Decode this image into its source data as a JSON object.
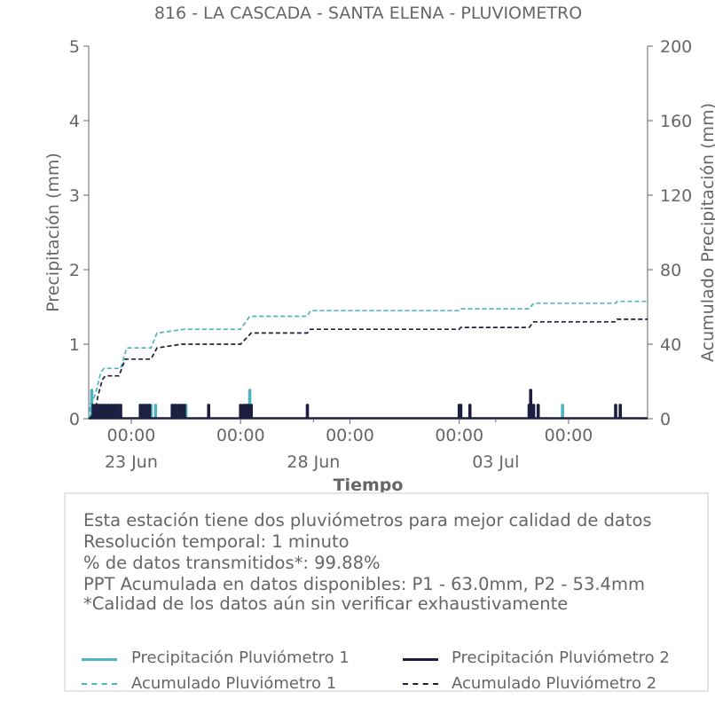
{
  "colors": {
    "p1": "#4fb3c1",
    "p2": "#1c1e3f",
    "axis": "#666666"
  },
  "chart_data": {
    "type": "line",
    "title": "816 - LA CASCADA - SANTA ELENA - PLUVIOMETRO",
    "xlabel": "Tiempo",
    "ylabel": "Precipitación (mm)",
    "y2label": "Acumulado Precipitación (mm)",
    "xlim": [
      "2023-06-21T20:00",
      "2023-07-07T04:00"
    ],
    "ylim": [
      0,
      5
    ],
    "y2lim": [
      0,
      200
    ],
    "yticks": [
      "0",
      "1",
      "2",
      "3",
      "4",
      "5"
    ],
    "y2ticks": [
      "0",
      "40",
      "80",
      "120",
      "160",
      "200"
    ],
    "xticks": [
      {
        "t": "2023-06-23T00:00",
        "label": "00:00"
      },
      {
        "t": "2023-06-26T00:00",
        "label": "00:00"
      },
      {
        "t": "2023-06-29T00:00",
        "label": "00:00"
      },
      {
        "t": "2023-07-02T00:00",
        "label": "00:00"
      },
      {
        "t": "2023-07-05T00:00",
        "label": "00:00"
      }
    ],
    "xdates": [
      {
        "t": "2023-06-23T00:00",
        "label": "23 Jun"
      },
      {
        "t": "2023-06-28T00:00",
        "label": "28 Jun"
      },
      {
        "t": "2023-07-03T00:00",
        "label": "03 Jul"
      }
    ],
    "series": [
      {
        "name": "Precipitación Pluviómetro 1",
        "style": "bar",
        "axis": "left",
        "points": [
          {
            "x": "2023-06-21T22:00",
            "y": 0.4
          },
          {
            "x": "2023-06-22T00:00",
            "y": 0.2
          },
          {
            "x": "2023-06-22T02:00",
            "y": 0.2
          },
          {
            "x": "2023-06-22T04:00",
            "y": 0.2
          },
          {
            "x": "2023-06-22T06:00",
            "y": 0.2
          },
          {
            "x": "2023-06-22T08:00",
            "y": 0.2
          },
          {
            "x": "2023-06-22T10:00",
            "y": 0.2
          },
          {
            "x": "2023-06-22T12:00",
            "y": 0.2
          },
          {
            "x": "2023-06-22T14:00",
            "y": 0.2
          },
          {
            "x": "2023-06-22T16:00",
            "y": 0.2
          },
          {
            "x": "2023-06-23T07:00",
            "y": 0.2
          },
          {
            "x": "2023-06-23T09:00",
            "y": 0.2
          },
          {
            "x": "2023-06-23T11:00",
            "y": 0.2
          },
          {
            "x": "2023-06-23T13:00",
            "y": 0.2
          },
          {
            "x": "2023-06-23T16:00",
            "y": 0.2
          },
          {
            "x": "2023-06-24T04:00",
            "y": 0.2
          },
          {
            "x": "2023-06-24T06:00",
            "y": 0.2
          },
          {
            "x": "2023-06-24T08:00",
            "y": 0.2
          },
          {
            "x": "2023-06-24T10:00",
            "y": 0.2
          },
          {
            "x": "2023-06-24T12:00",
            "y": 0.2
          },
          {
            "x": "2023-06-26T03:00",
            "y": 0.2
          },
          {
            "x": "2023-06-26T06:00",
            "y": 0.4
          },
          {
            "x": "2023-07-04T20:00",
            "y": 0.2
          }
        ]
      },
      {
        "name": "Precipitación Pluviómetro 2",
        "style": "bar",
        "axis": "left",
        "points": [
          {
            "x": "2023-06-21T23:00",
            "y": 0.2
          },
          {
            "x": "2023-06-22T01:00",
            "y": 0.2
          },
          {
            "x": "2023-06-22T03:00",
            "y": 0.2
          },
          {
            "x": "2023-06-22T05:00",
            "y": 0.2
          },
          {
            "x": "2023-06-22T07:00",
            "y": 0.2
          },
          {
            "x": "2023-06-22T09:00",
            "y": 0.2
          },
          {
            "x": "2023-06-22T11:00",
            "y": 0.2
          },
          {
            "x": "2023-06-22T13:00",
            "y": 0.2
          },
          {
            "x": "2023-06-22T15:00",
            "y": 0.2
          },
          {
            "x": "2023-06-22T17:00",
            "y": 0.2
          },
          {
            "x": "2023-06-23T06:00",
            "y": 0.2
          },
          {
            "x": "2023-06-23T08:00",
            "y": 0.2
          },
          {
            "x": "2023-06-23T10:00",
            "y": 0.2
          },
          {
            "x": "2023-06-23T12:00",
            "y": 0.2
          },
          {
            "x": "2023-06-24T03:00",
            "y": 0.2
          },
          {
            "x": "2023-06-24T05:00",
            "y": 0.2
          },
          {
            "x": "2023-06-24T07:00",
            "y": 0.2
          },
          {
            "x": "2023-06-24T09:00",
            "y": 0.2
          },
          {
            "x": "2023-06-24T11:00",
            "y": 0.2
          },
          {
            "x": "2023-06-25T03:00",
            "y": 0.2
          },
          {
            "x": "2023-06-26T00:00",
            "y": 0.2
          },
          {
            "x": "2023-06-26T02:00",
            "y": 0.2
          },
          {
            "x": "2023-06-26T04:00",
            "y": 0.2
          },
          {
            "x": "2023-06-26T05:00",
            "y": 0.2
          },
          {
            "x": "2023-06-26T07:00",
            "y": 0.2
          },
          {
            "x": "2023-06-27T20:00",
            "y": 0.2
          },
          {
            "x": "2023-07-02T00:00",
            "y": 0.2
          },
          {
            "x": "2023-07-02T01:00",
            "y": 0.2
          },
          {
            "x": "2023-07-02T07:00",
            "y": 0.2
          },
          {
            "x": "2023-07-03T22:00",
            "y": 0.2
          },
          {
            "x": "2023-07-03T23:00",
            "y": 0.4
          },
          {
            "x": "2023-07-04T01:00",
            "y": 0.2
          },
          {
            "x": "2023-07-04T04:00",
            "y": 0.2
          },
          {
            "x": "2023-07-06T07:00",
            "y": 0.2
          },
          {
            "x": "2023-07-06T10:00",
            "y": 0.2
          }
        ]
      },
      {
        "name": "Acumulado Pluviómetro 1",
        "style": "dashed",
        "axis": "right",
        "points": [
          {
            "x": "2023-06-21T20:00",
            "y": 0
          },
          {
            "x": "2023-06-21T21:00",
            "y": 8
          },
          {
            "x": "2023-06-21T23:00",
            "y": 10
          },
          {
            "x": "2023-06-22T01:00",
            "y": 15
          },
          {
            "x": "2023-06-22T04:00",
            "y": 25
          },
          {
            "x": "2023-06-22T06:00",
            "y": 27
          },
          {
            "x": "2023-06-22T17:00",
            "y": 27
          },
          {
            "x": "2023-06-22T21:00",
            "y": 38
          },
          {
            "x": "2023-06-23T13:00",
            "y": 38
          },
          {
            "x": "2023-06-23T17:00",
            "y": 46
          },
          {
            "x": "2023-06-24T11:00",
            "y": 48
          },
          {
            "x": "2023-06-26T00:00",
            "y": 48
          },
          {
            "x": "2023-06-26T06:00",
            "y": 55
          },
          {
            "x": "2023-06-27T20:00",
            "y": 55
          },
          {
            "x": "2023-06-27T22:00",
            "y": 58
          },
          {
            "x": "2023-07-02T00:00",
            "y": 58
          },
          {
            "x": "2023-07-02T01:00",
            "y": 59
          },
          {
            "x": "2023-07-03T22:00",
            "y": 59
          },
          {
            "x": "2023-07-04T01:00",
            "y": 62
          },
          {
            "x": "2023-07-06T07:00",
            "y": 62
          },
          {
            "x": "2023-07-06T08:00",
            "y": 63
          },
          {
            "x": "2023-07-07T04:00",
            "y": 63
          }
        ]
      },
      {
        "name": "Acumulado Pluviómetro 2",
        "style": "dashed",
        "axis": "right",
        "points": [
          {
            "x": "2023-06-21T20:00",
            "y": 0
          },
          {
            "x": "2023-06-22T00:00",
            "y": 3
          },
          {
            "x": "2023-06-22T02:00",
            "y": 12
          },
          {
            "x": "2023-06-22T05:00",
            "y": 21
          },
          {
            "x": "2023-06-22T07:00",
            "y": 23
          },
          {
            "x": "2023-06-22T16:00",
            "y": 23
          },
          {
            "x": "2023-06-22T20:00",
            "y": 32
          },
          {
            "x": "2023-06-23T13:00",
            "y": 32
          },
          {
            "x": "2023-06-23T17:00",
            "y": 38
          },
          {
            "x": "2023-06-24T09:00",
            "y": 40
          },
          {
            "x": "2023-06-26T00:00",
            "y": 40
          },
          {
            "x": "2023-06-26T07:00",
            "y": 46
          },
          {
            "x": "2023-06-27T20:00",
            "y": 46
          },
          {
            "x": "2023-06-27T22:00",
            "y": 48
          },
          {
            "x": "2023-07-02T00:00",
            "y": 48
          },
          {
            "x": "2023-07-02T01:00",
            "y": 49
          },
          {
            "x": "2023-07-03T22:00",
            "y": 49
          },
          {
            "x": "2023-07-04T01:00",
            "y": 52
          },
          {
            "x": "2023-07-06T07:00",
            "y": 52
          },
          {
            "x": "2023-07-06T08:00",
            "y": 53.4
          },
          {
            "x": "2023-07-07T04:00",
            "y": 53.4
          }
        ]
      }
    ]
  },
  "info": {
    "line1": "Esta estación tiene dos pluviómetros para mejor calidad de datos",
    "line2": "Resolución temporal: 1 minuto",
    "line3": "% de datos transmitidos*: 99.88%",
    "line4": "PPT Acumulada en datos disponibles: P1 - 63.0mm, P2 - 53.4mm",
    "line5": "*Calidad de los datos aún sin verificar exhaustivamente"
  },
  "legend": {
    "p1_precip": "Precipitación Pluviómetro 1",
    "p2_precip": "Precipitación Pluviómetro 2",
    "p1_acum": "Acumulado Pluviómetro 1",
    "p2_acum": "Acumulado Pluviómetro 2"
  }
}
